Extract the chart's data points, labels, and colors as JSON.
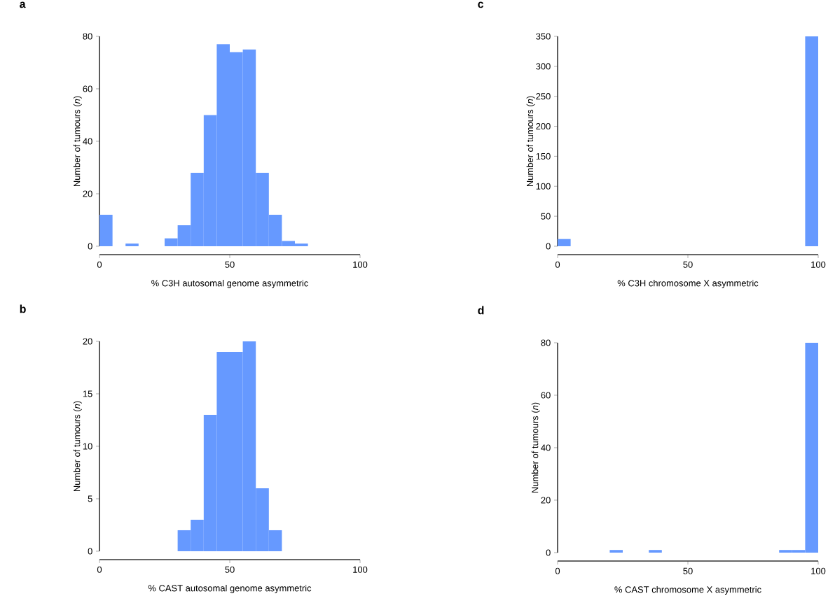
{
  "chart_data": [
    {
      "type": "histogram",
      "title": "a",
      "xlabel": "% C3H autosomal genome asymmetric",
      "ylabel": "Number of tumours (*n*)",
      "color": "#6699ff",
      "xlim": [
        0,
        100
      ],
      "xticks": [
        0,
        50,
        100
      ],
      "ylim": [
        0,
        80
      ],
      "yticks": [
        0,
        20,
        40,
        60,
        80
      ],
      "bins": [
        0,
        5,
        10,
        15,
        20,
        25,
        30,
        35,
        40,
        45,
        50,
        55,
        60,
        65,
        70,
        75,
        80,
        85,
        90,
        95,
        100
      ],
      "values": [
        12,
        0,
        1,
        0,
        0,
        3,
        8,
        28,
        50,
        77,
        74,
        75,
        28,
        12,
        2,
        1,
        0,
        0,
        0,
        0
      ]
    },
    {
      "type": "histogram",
      "title": "c",
      "xlabel": "% C3H chromosome X asymmetric",
      "ylabel": "Number of tumours (*n*)",
      "color": "#6699ff",
      "xlim": [
        0,
        100
      ],
      "xticks": [
        0,
        50,
        100
      ],
      "ylim": [
        0,
        350
      ],
      "yticks": [
        0,
        50,
        100,
        150,
        200,
        250,
        300,
        350
      ],
      "bins": [
        0,
        5,
        10,
        15,
        20,
        25,
        30,
        35,
        40,
        45,
        50,
        55,
        60,
        65,
        70,
        75,
        80,
        85,
        90,
        95,
        100
      ],
      "values": [
        12,
        0,
        0,
        0,
        0,
        0,
        0,
        0,
        0,
        0,
        0,
        0,
        0,
        0,
        0,
        0,
        0,
        0,
        0,
        350
      ]
    },
    {
      "type": "histogram",
      "title": "b",
      "xlabel": "% CAST autosomal genome asymmetric",
      "ylabel": "Number of tumours (*n*)",
      "color": "#6699ff",
      "xlim": [
        0,
        100
      ],
      "xticks": [
        0,
        50,
        100
      ],
      "ylim": [
        0,
        20
      ],
      "yticks": [
        0,
        5,
        10,
        15,
        20
      ],
      "bins": [
        0,
        5,
        10,
        15,
        20,
        25,
        30,
        35,
        40,
        45,
        50,
        55,
        60,
        65,
        70,
        75,
        80,
        85,
        90,
        95,
        100
      ],
      "values": [
        0,
        0,
        0,
        0,
        0,
        0,
        2,
        3,
        13,
        19,
        19,
        20,
        6,
        2,
        0,
        0,
        0,
        0,
        0,
        0
      ]
    },
    {
      "type": "histogram",
      "title": "d",
      "xlabel": "% CAST chromosome X asymmetric",
      "ylabel": "Number of tumours (*n*)",
      "color": "#6699ff",
      "xlim": [
        0,
        100
      ],
      "xticks": [
        0,
        50,
        100
      ],
      "ylim": [
        0,
        80
      ],
      "yticks": [
        0,
        20,
        40,
        60,
        80
      ],
      "bins": [
        0,
        5,
        10,
        15,
        20,
        25,
        30,
        35,
        40,
        45,
        50,
        55,
        60,
        65,
        70,
        75,
        80,
        85,
        90,
        95,
        100
      ],
      "values": [
        0,
        0,
        0,
        0,
        1,
        0,
        0,
        1,
        0,
        0,
        0,
        0,
        0,
        0,
        0,
        0,
        0,
        1,
        1,
        80
      ]
    }
  ]
}
